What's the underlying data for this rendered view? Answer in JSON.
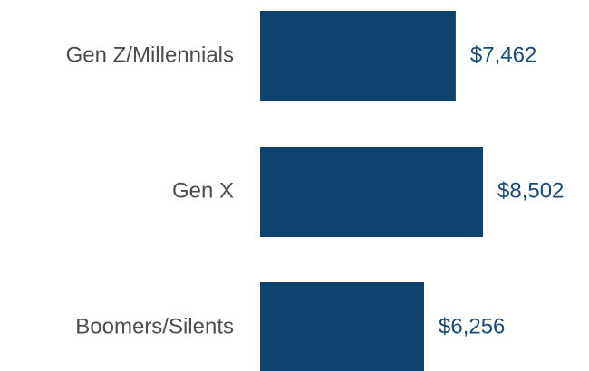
{
  "chart_data": {
    "type": "barh",
    "categories": [
      "Gen Z/Millennials",
      "Gen X",
      "Boomers/Silents"
    ],
    "values": [
      7462,
      8502,
      6256
    ],
    "value_labels": [
      "$7,462",
      "$8,502",
      "$6,256"
    ],
    "color": "#10426e"
  }
}
